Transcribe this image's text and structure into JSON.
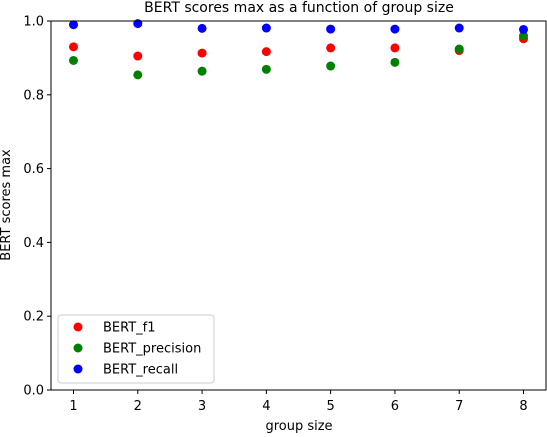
{
  "chart_data": {
    "type": "scatter",
    "title": "BERT scores max as a function of group size",
    "xlabel": "group size",
    "ylabel": "BERT scores max",
    "xlim": [
      0.65,
      8.35
    ],
    "ylim": [
      0.0,
      1.0
    ],
    "xticks": [
      1,
      2,
      3,
      4,
      5,
      6,
      7,
      8
    ],
    "xtick_labels": [
      "1",
      "2",
      "3",
      "4",
      "5",
      "6",
      "7",
      "8"
    ],
    "yticks": [
      0.0,
      0.2,
      0.4,
      0.6,
      0.8,
      1.0
    ],
    "ytick_labels": [
      "0.0",
      "0.2",
      "0.4",
      "0.6",
      "0.8",
      "1.0"
    ],
    "grid": false,
    "legend_position": "lower-left",
    "x": [
      1,
      2,
      3,
      4,
      5,
      6,
      7,
      8
    ],
    "series": [
      {
        "name": "BERT_f1",
        "color": "#ff0000",
        "values": [
          0.93,
          0.905,
          0.913,
          0.917,
          0.927,
          0.927,
          0.92,
          0.952
        ]
      },
      {
        "name": "BERT_precision",
        "color": "#008000",
        "values": [
          0.893,
          0.854,
          0.864,
          0.869,
          0.878,
          0.888,
          0.924,
          0.96
        ]
      },
      {
        "name": "BERT_recall",
        "color": "#0000ff",
        "values": [
          0.99,
          0.993,
          0.98,
          0.981,
          0.978,
          0.978,
          0.981,
          0.977
        ]
      }
    ]
  }
}
